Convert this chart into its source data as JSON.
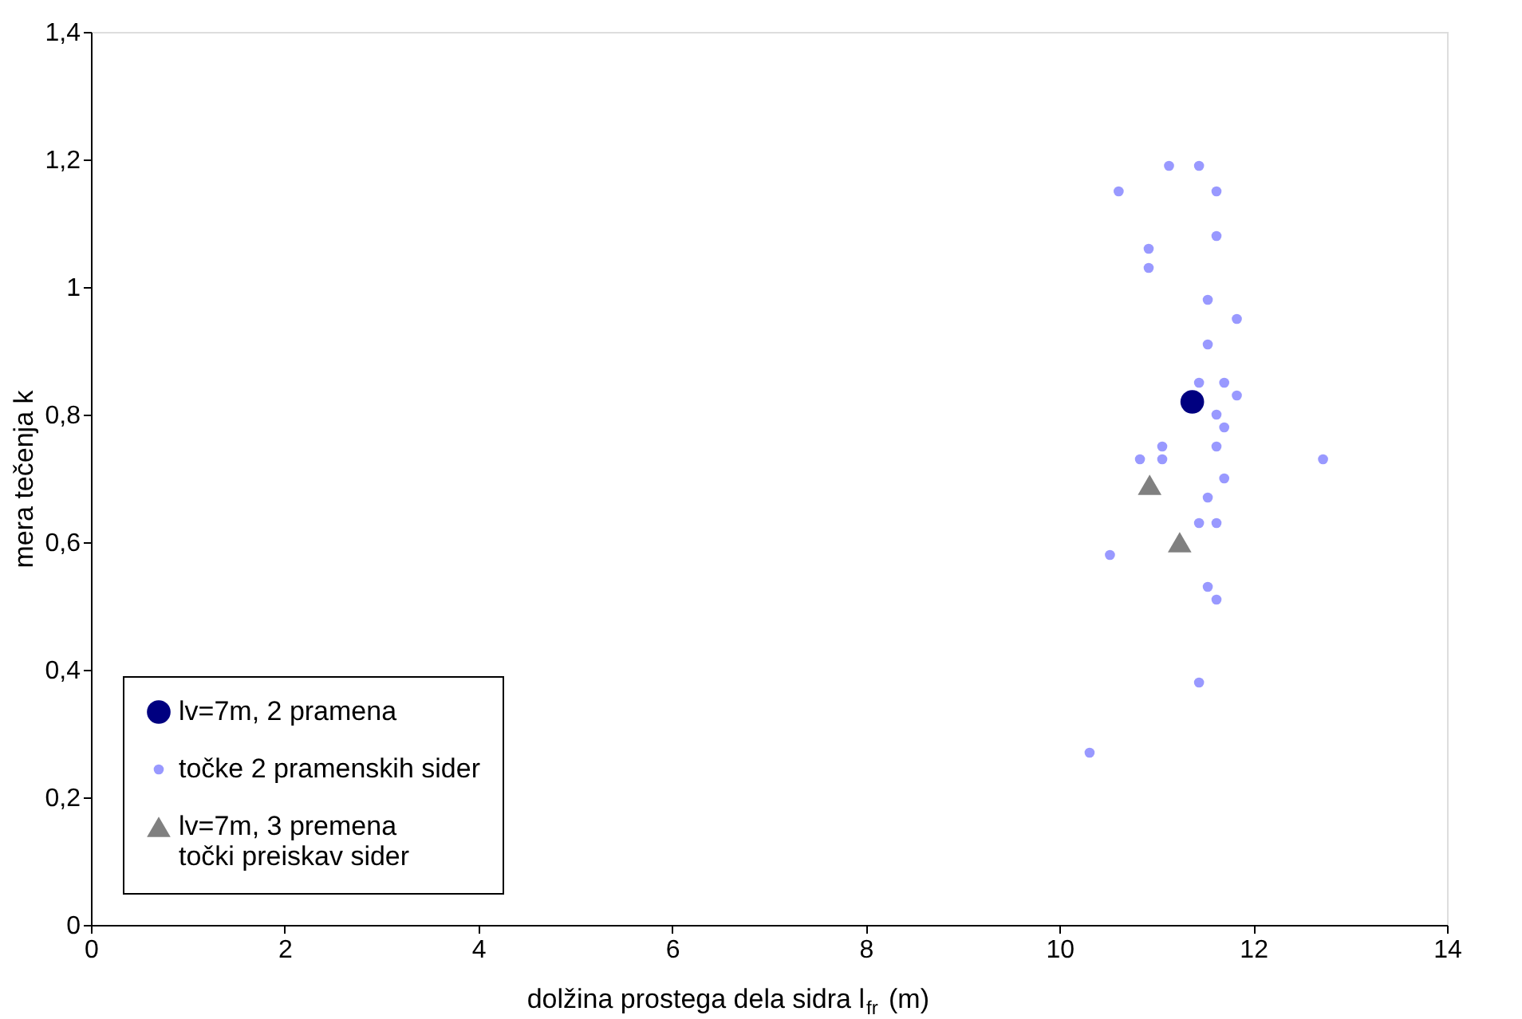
{
  "chart_data": {
    "type": "scatter",
    "xlabel": "dolžina prostega dela sidra l$_{fr}$ (m)",
    "ylabel": "mera tečenja k",
    "xlim": [
      0,
      14
    ],
    "xticks": [
      0,
      2,
      4,
      6,
      8,
      10,
      12,
      14
    ],
    "ylim": [
      0,
      1.4
    ],
    "yticks": [
      0,
      {
        "value": 0.2,
        "label": "0,2"
      },
      {
        "value": 0.4,
        "label": "0,4"
      },
      {
        "value": 0.6,
        "label": "0,6"
      },
      {
        "value": 0.8,
        "label": "0,8"
      },
      1,
      {
        "value": 1.2,
        "label": "1,2"
      },
      {
        "value": 1.4,
        "label": "1,4"
      }
    ],
    "grid": false,
    "legend": "bottom left",
    "series": [
      {
        "name": "lv=7m, 2 pramena",
        "color": "#000080",
        "marker": "circle",
        "x": [
          11.37
        ],
        "values": [
          0.82
        ]
      },
      {
        "name": "točke 2 pramenskih sider",
        "color": "#9999ff",
        "marker": "circle",
        "x": [
          11.13,
          11.44,
          10.61,
          11.62,
          11.62,
          10.92,
          10.92,
          11.53,
          11.83,
          11.53,
          11.44,
          11.7,
          11.83,
          11.62,
          11.7,
          11.06,
          11.62,
          10.83,
          11.06,
          12.72,
          11.7,
          11.53,
          11.44,
          11.62,
          10.52,
          11.53,
          11.62,
          11.44,
          10.31
        ],
        "values": [
          1.19,
          1.19,
          1.15,
          1.15,
          1.08,
          1.06,
          1.03,
          0.98,
          0.95,
          0.91,
          0.85,
          0.85,
          0.83,
          0.8,
          0.78,
          0.75,
          0.75,
          0.73,
          0.73,
          0.73,
          0.7,
          0.67,
          0.63,
          0.63,
          0.58,
          0.53,
          0.51,
          0.38,
          0.27
        ]
      },
      {
        "name": "lv=7m, 3 premena\ntočki preiskav sider",
        "color": "#808080",
        "marker": "triangle",
        "x": [
          10.93,
          11.24
        ],
        "values": [
          0.69,
          0.6
        ]
      }
    ]
  }
}
